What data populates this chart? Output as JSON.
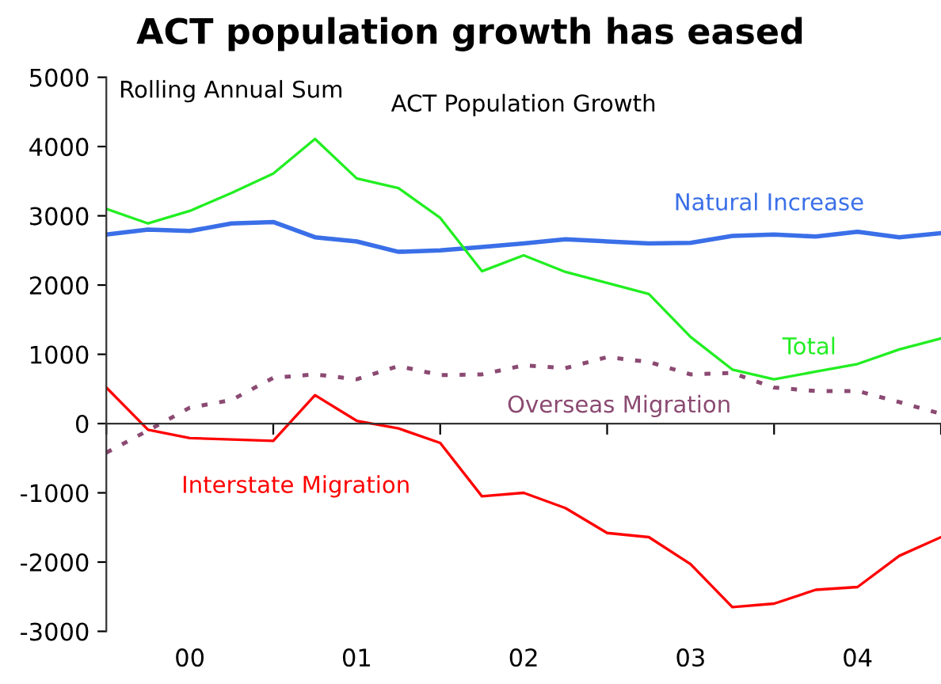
{
  "chart_data": {
    "type": "line",
    "title": "ACT population growth has eased",
    "subtitle": "ACT Population Growth",
    "annotations": [
      "Rolling Annual Sum"
    ],
    "categories": [
      null,
      null,
      "00",
      null,
      null,
      null,
      "01",
      null,
      null,
      null,
      "02",
      null,
      null,
      null,
      "03",
      null,
      null,
      null,
      "04",
      null,
      null
    ],
    "series": [
      {
        "name": "Natural Increase",
        "color": "#3a6fe8",
        "values": [
          2730,
          2800,
          2780,
          2890,
          2910,
          2690,
          2630,
          2480,
          2500,
          2550,
          2600,
          2660,
          2630,
          2600,
          2610,
          2710,
          2730,
          2700,
          2770,
          2690,
          2750
        ]
      },
      {
        "name": "Total",
        "color": "#22ee22",
        "values": [
          3100,
          2890,
          3070,
          3330,
          3610,
          4110,
          3540,
          3400,
          2970,
          2200,
          2430,
          2190,
          2030,
          1870,
          1250,
          780,
          640,
          750,
          860,
          1070,
          1230
        ]
      },
      {
        "name": "Overseas Migration",
        "color": "#8b4a72",
        "line_style": "dotted",
        "values": [
          -420,
          -100,
          230,
          340,
          660,
          710,
          640,
          830,
          700,
          710,
          840,
          800,
          960,
          890,
          710,
          730,
          520,
          470,
          470,
          310,
          140
        ]
      },
      {
        "name": "Interstate Migration",
        "color": "#ff0000",
        "values": [
          520,
          -90,
          -210,
          -230,
          -250,
          410,
          40,
          -70,
          -280,
          -1050,
          -1000,
          -1220,
          -1580,
          -1640,
          -2030,
          -2650,
          -2600,
          -2400,
          -2360,
          -1910,
          -1640
        ]
      }
    ],
    "ylim": [
      -3000,
      5000
    ],
    "yticks": [
      -3000,
      -2000,
      -1000,
      0,
      1000,
      2000,
      3000,
      4000,
      5000
    ],
    "ref_lines": [
      {
        "axis": "y",
        "value": 0,
        "color": "#333333"
      }
    ],
    "grid": false,
    "legend": false,
    "line_style": "solid"
  }
}
